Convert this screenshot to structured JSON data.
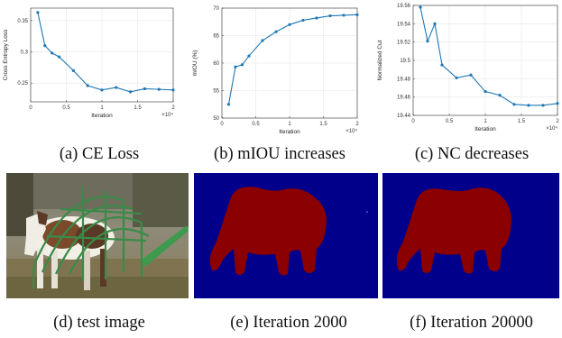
{
  "colors": {
    "line": "#1f77b4",
    "seg_background": "#00008b",
    "seg_foreground": "#8b0000"
  },
  "chart_data": [
    {
      "type": "line",
      "xlabel": "Iteration",
      "ylabel": "Cross Entropy Loss",
      "x_exponent_label": "×10⁴",
      "xlim": [
        0,
        2
      ],
      "ylim": [
        0.22,
        0.37
      ],
      "xticks": [
        "0",
        "0.5",
        "1",
        "1.5",
        "2"
      ],
      "yticks": [
        "0.25",
        "0.3",
        "0.35"
      ],
      "ytick_values": [
        0.25,
        0.3,
        0.35
      ],
      "x": [
        0.1,
        0.2,
        0.3,
        0.4,
        0.6,
        0.8,
        1.0,
        1.2,
        1.4,
        1.6,
        1.8,
        2.0
      ],
      "values": [
        0.363,
        0.31,
        0.298,
        0.292,
        0.27,
        0.246,
        0.239,
        0.243,
        0.236,
        0.241,
        0.24,
        0.239
      ],
      "grid": true
    },
    {
      "type": "line",
      "xlabel": "Iteration",
      "ylabel": "mIOU (%)",
      "x_exponent_label": "×10⁴",
      "xlim": [
        0,
        2
      ],
      "ylim": [
        50,
        70
      ],
      "xticks": [
        "0",
        "0.5",
        "1",
        "1.5",
        "2"
      ],
      "yticks": [
        "50",
        "55",
        "60",
        "65",
        "70"
      ],
      "ytick_values": [
        50,
        55,
        60,
        65,
        70
      ],
      "x": [
        0.1,
        0.2,
        0.3,
        0.4,
        0.6,
        0.8,
        1.0,
        1.2,
        1.4,
        1.6,
        1.8,
        2.0
      ],
      "values": [
        52.5,
        59.3,
        59.7,
        61.3,
        64.1,
        65.7,
        67.0,
        67.8,
        68.2,
        68.6,
        68.7,
        68.8
      ],
      "grid": true
    },
    {
      "type": "line",
      "xlabel": "Iteration",
      "ylabel": "Normalized Cut",
      "x_exponent_label": "×10⁴",
      "xlim": [
        0,
        2
      ],
      "ylim": [
        19.44,
        19.56
      ],
      "xticks": [
        "0",
        "0.5",
        "1",
        "1.5",
        "2"
      ],
      "yticks": [
        "19.44",
        "19.46",
        "19.48",
        "19.5",
        "19.52",
        "19.54",
        "19.56"
      ],
      "ytick_values": [
        19.44,
        19.46,
        19.48,
        19.5,
        19.52,
        19.54,
        19.56
      ],
      "x": [
        0.1,
        0.2,
        0.3,
        0.4,
        0.6,
        0.8,
        1.0,
        1.2,
        1.4,
        1.6,
        1.8,
        2.0
      ],
      "values": [
        19.558,
        19.521,
        19.54,
        19.495,
        19.481,
        19.484,
        19.466,
        19.462,
        19.452,
        19.451,
        19.451,
        19.453
      ],
      "grid": true
    }
  ],
  "captions": {
    "a": "(a) CE Loss",
    "b": "(b) mIOU increases",
    "c": "(c) NC decreases",
    "d": "(d) test image",
    "e": "(e) Iteration 2000",
    "f": "(f) Iteration 20000"
  }
}
